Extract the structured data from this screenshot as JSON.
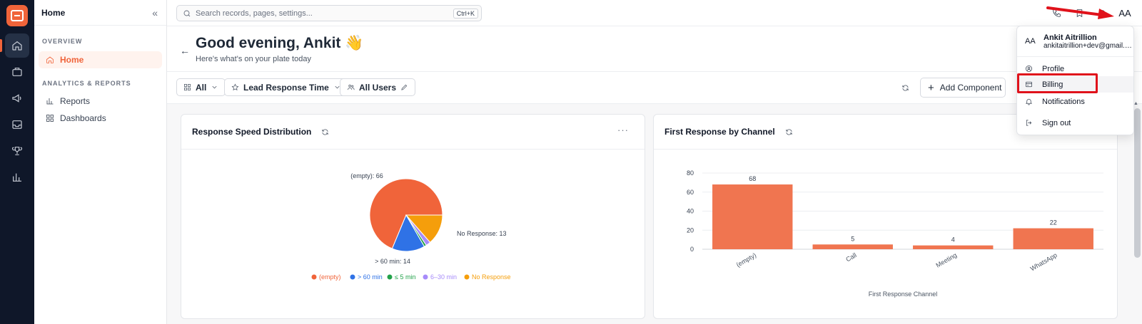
{
  "sidebar": {
    "title": "Home",
    "sections": [
      {
        "label": "OVERVIEW",
        "items": [
          {
            "label": "Home",
            "active": true
          }
        ]
      },
      {
        "label": "ANALYTICS & REPORTS",
        "items": [
          {
            "label": "Reports"
          },
          {
            "label": "Dashboards"
          }
        ]
      }
    ]
  },
  "search": {
    "placeholder": "Search records, pages, settings...",
    "shortcut": "Ctrl+K"
  },
  "user": {
    "initials": "AA",
    "name": "Ankit Aitrillion",
    "email": "ankitaitrillion+dev@gmail.com"
  },
  "greeting": {
    "title": "Good evening, Ankit 👋",
    "subtitle": "Here's what's on your plate today"
  },
  "filters": {
    "all": "All",
    "metric": "Lead Response Time",
    "users": "All Users",
    "add": "Add Component"
  },
  "menu": {
    "items": [
      "Profile",
      "Billing",
      "Notifications",
      "Sign out"
    ]
  },
  "colors": {
    "accent": "#f0643a",
    "blue": "#2f72e6",
    "green": "#22a24a",
    "purple": "#a78bfa",
    "orange": "#f59e0b",
    "highlight": "#e0121b"
  },
  "chart_data": [
    {
      "type": "pie",
      "title": "Response Speed Distribution",
      "slices": [
        {
          "label": "(empty)",
          "value": 66,
          "color": "#f0643a"
        },
        {
          "label": "> 60 min",
          "value": 14,
          "color": "#2f72e6"
        },
        {
          "label": "≤ 5 min",
          "value": 1,
          "color": "#22a24a"
        },
        {
          "label": "6–30 min",
          "value": 2,
          "color": "#a78bfa"
        },
        {
          "label": "No Response",
          "value": 13,
          "color": "#f59e0b"
        }
      ],
      "data_labels": [
        "(empty): 66",
        "> 60 min: 14",
        "No Response: 13"
      ],
      "legend": "bottom"
    },
    {
      "type": "bar",
      "title": "First Response by Channel",
      "categories": [
        "(empty)",
        "Call",
        "Meeting",
        "WhatsApp"
      ],
      "values": [
        68,
        5,
        4,
        22
      ],
      "xlabel": "First Response Channel",
      "ylim": [
        0,
        80
      ],
      "yticks": [
        0,
        20,
        40,
        60,
        80
      ],
      "color": "#f07550"
    }
  ]
}
